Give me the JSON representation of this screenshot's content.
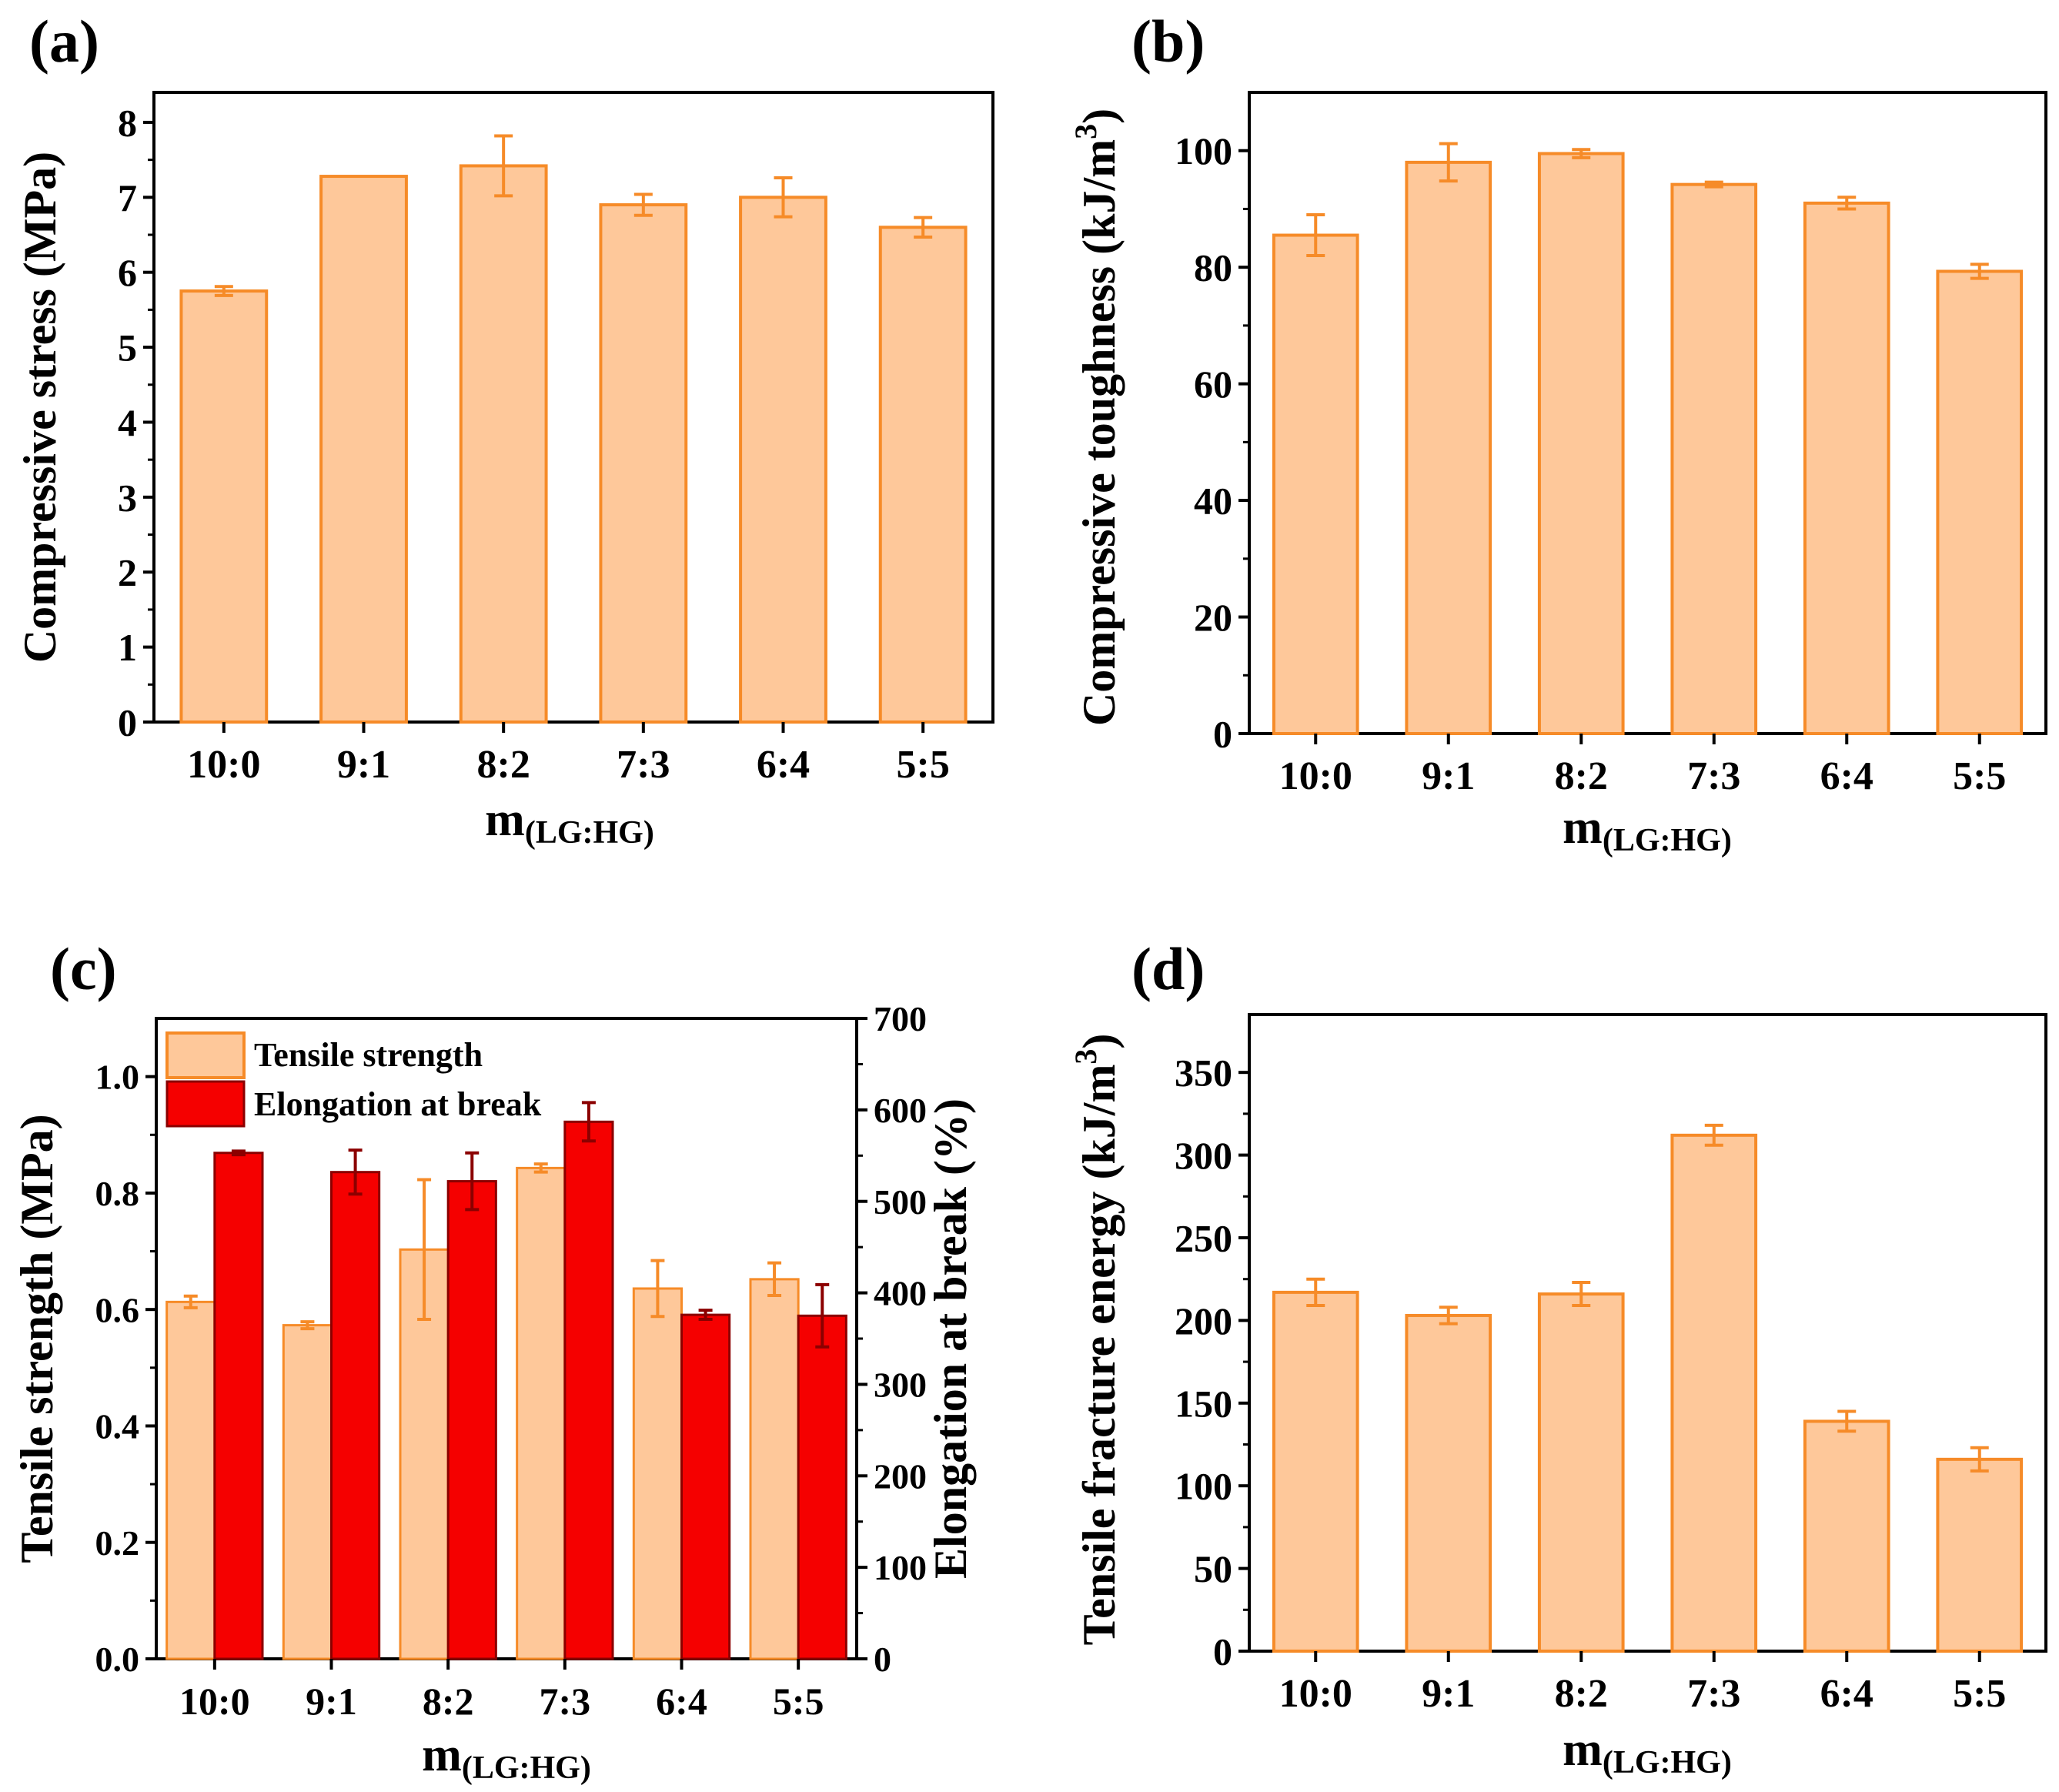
{
  "figure": {
    "panel_letters": [
      "(a)",
      "(b)",
      "(c)",
      "(d)"
    ]
  },
  "colors": {
    "bar_fill": "#fec89a",
    "bar_stroke": "#f68b28",
    "elongation_fill": "#f50000",
    "elongation_err": "#8b0000",
    "axis": "#000000"
  },
  "chart_data": [
    {
      "panel": "(a)",
      "type": "bar",
      "categories": [
        "10:0",
        "9:1",
        "8:2",
        "7:3",
        "6:4",
        "5:5"
      ],
      "values": [
        5.75,
        7.28,
        7.42,
        6.9,
        7.0,
        6.6
      ],
      "errors": [
        0.06,
        0.0,
        0.4,
        0.14,
        0.26,
        0.13
      ],
      "ylim": [
        0,
        8.4
      ],
      "yticks": [
        0,
        1,
        2,
        3,
        4,
        5,
        6,
        7,
        8
      ],
      "ylabel": "Compressive stress (MPa)",
      "xlabel_main": "m",
      "xlabel_sub": "(LG:HG)"
    },
    {
      "panel": "(b)",
      "type": "bar",
      "categories": [
        "10:0",
        "9:1",
        "8:2",
        "7:3",
        "6:4",
        "5:5"
      ],
      "values": [
        85.5,
        98.0,
        99.5,
        94.2,
        91.0,
        79.3
      ],
      "errors": [
        3.5,
        3.2,
        0.7,
        0.4,
        1.0,
        1.2
      ],
      "ylim": [
        0,
        110
      ],
      "yticks": [
        0,
        20,
        40,
        60,
        80,
        100
      ],
      "ylabel_main": "Compressive toughness (kJ/m",
      "ylabel_sup": "3",
      "ylabel_end": ")",
      "xlabel_main": "m",
      "xlabel_sub": "(LG:HG)"
    },
    {
      "panel": "(c)",
      "type": "bar",
      "categories": [
        "10:0",
        "9:1",
        "8:2",
        "7:3",
        "6:4",
        "5:5"
      ],
      "series": [
        {
          "name": "Tensile strength",
          "axis": "left",
          "values": [
            0.613,
            0.573,
            0.703,
            0.843,
            0.636,
            0.652
          ],
          "errors": [
            0.01,
            0.006,
            0.12,
            0.007,
            0.048,
            0.028
          ]
        },
        {
          "name": "Elongation at break",
          "axis": "right",
          "values": [
            553,
            532,
            522,
            587,
            376,
            375
          ],
          "errors": [
            2,
            24,
            31,
            21,
            5,
            34
          ]
        }
      ],
      "ylim_left": [
        0,
        1.1
      ],
      "yticks_left": [
        "0.0",
        "0.2",
        "0.4",
        "0.6",
        "0.8",
        "1.0"
      ],
      "ylim_right": [
        0,
        700
      ],
      "yticks_right": [
        0,
        100,
        200,
        300,
        400,
        500,
        600,
        700
      ],
      "ylabel_left": "Tensile strength (MPa)",
      "ylabel_right": "Elongation at break (%)",
      "legend": "top-left",
      "xlabel_main": "m",
      "xlabel_sub": "(LG:HG)"
    },
    {
      "panel": "(d)",
      "type": "bar",
      "categories": [
        "10:0",
        "9:1",
        "8:2",
        "7:3",
        "6:4",
        "5:5"
      ],
      "values": [
        217,
        203,
        216,
        312,
        139,
        116
      ],
      "errors": [
        8,
        5,
        7,
        6,
        6,
        7
      ],
      "ylim": [
        0,
        385
      ],
      "yticks": [
        0,
        50,
        100,
        150,
        200,
        250,
        300,
        350
      ],
      "ylabel_main": "Tensile fracture energy (kJ/m",
      "ylabel_sup": "3",
      "ylabel_end": ")",
      "xlabel_main": "m",
      "xlabel_sub": "(LG:HG)"
    }
  ]
}
